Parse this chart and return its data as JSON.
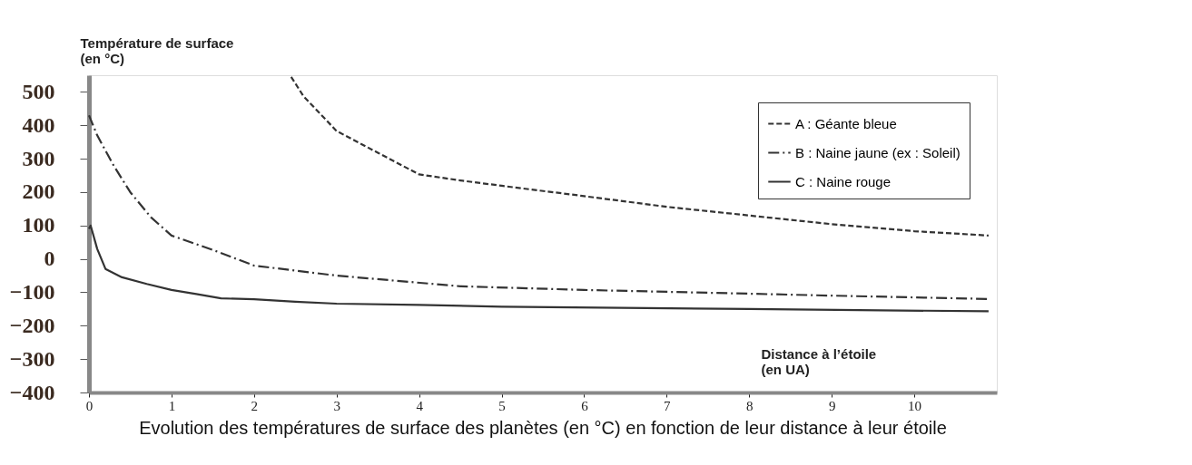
{
  "chart_data": {
    "type": "line",
    "title": "Evolution des températures de surface des planètes (en °C) en fonction de leur distance à leur étoile",
    "xlabel": "Distance à l’étoile\n(en UA)",
    "ylabel": "Température de surface\n(en °C)",
    "xlim": [
      0,
      11
    ],
    "xticks": [
      0,
      1,
      2,
      3,
      4,
      5,
      6,
      7,
      8,
      9,
      10
    ],
    "ylim": [
      -400,
      550
    ],
    "yticks": [
      -400,
      -300,
      -200,
      -100,
      0,
      100,
      200,
      300,
      400,
      500
    ],
    "grid": false,
    "legend": "top right",
    "marker": "none",
    "series": [
      {
        "name": "A : Géante bleue",
        "color": "#333333",
        "line_style": "dashed",
        "x": [
          2.45,
          2.6,
          2.8,
          3.0,
          3.2,
          3.5,
          3.8,
          4.0,
          4.5,
          5.0,
          6.0,
          7.0,
          8.0,
          9.0,
          10.0,
          10.9
        ],
        "values": [
          545,
          487,
          435,
          383,
          357,
          318,
          279,
          253,
          235,
          219,
          188,
          156,
          130,
          104,
          83,
          70
        ]
      },
      {
        "name": "B : Naine jaune (ex : Soleil)",
        "color": "#333333",
        "line_style": "dashdot",
        "x": [
          0.0,
          0.1,
          0.3,
          0.5,
          0.75,
          1.0,
          1.5,
          2.0,
          3.0,
          4.5,
          6.0,
          7.8,
          9.0,
          10.9
        ],
        "values": [
          430,
          370,
          279,
          200,
          125,
          70,
          27,
          -20,
          -50,
          -82,
          -93,
          -103,
          -110,
          -120
        ]
      },
      {
        "name": "C : Naine rouge",
        "color": "#333333",
        "line_style": "solid",
        "x": [
          0.0,
          0.02,
          0.1,
          0.2,
          0.4,
          0.7,
          1.0,
          1.3,
          1.6,
          2.0,
          2.5,
          3.0,
          4.0,
          5.0,
          8.0,
          10.9
        ],
        "values": [
          90,
          100,
          30,
          -30,
          -55,
          -75,
          -93,
          -105,
          -118,
          -121,
          -128,
          -134,
          -138,
          -143,
          -150,
          -157
        ]
      }
    ]
  }
}
